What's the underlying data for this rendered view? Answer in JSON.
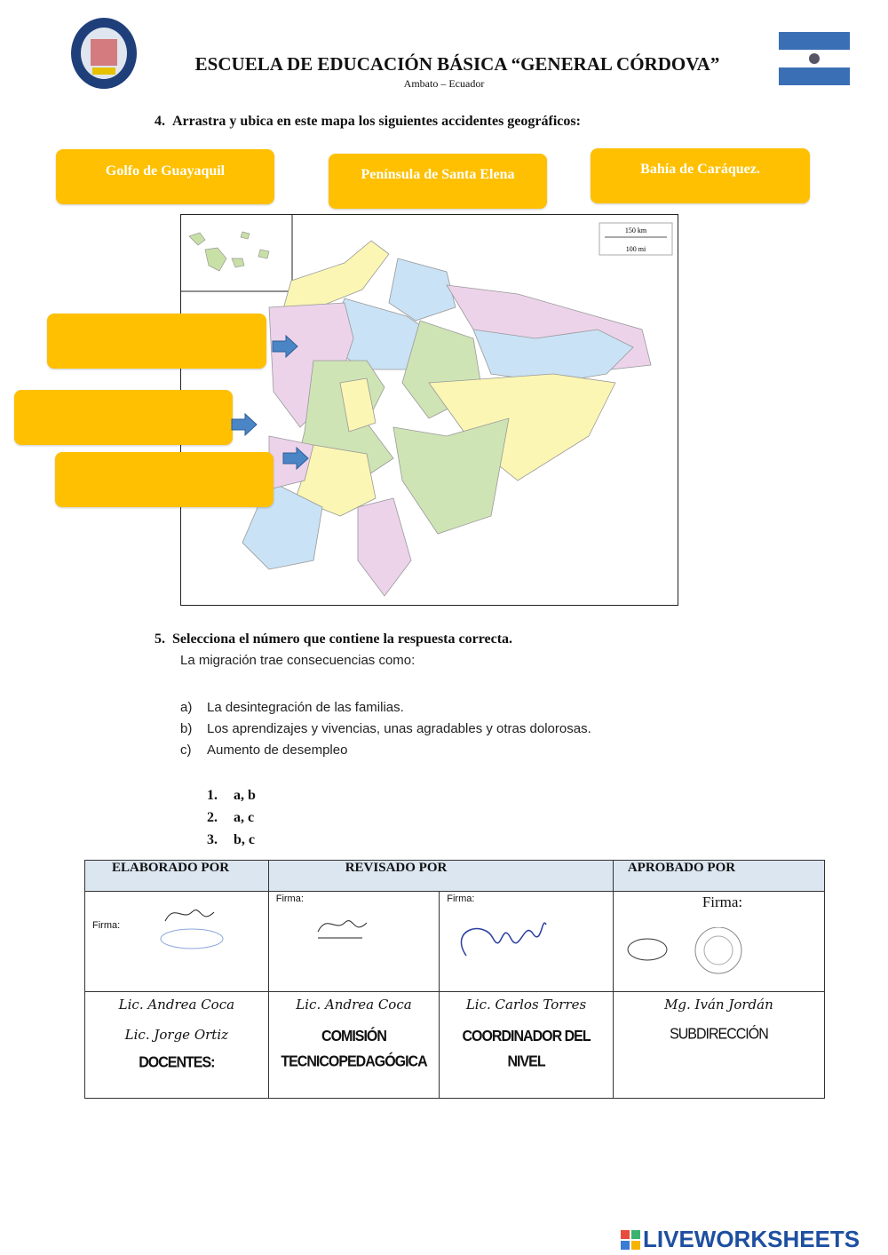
{
  "header": {
    "school": "ESCUELA DE EDUCACIÓN BÁSICA “GENERAL CÓRDOVA”",
    "location": "Ambato – Ecuador"
  },
  "q4": {
    "number": "4.",
    "text": "Arrastra y ubica en este mapa los siguientes accidentes geográficos:",
    "options": [
      "Golfo de Guayaquil",
      "Península de Santa Elena",
      "Bahía de Caráquez."
    ],
    "scale": {
      "km": "150 km",
      "mi": "100 mi"
    }
  },
  "q5": {
    "number": "5.",
    "text": "Selecciona el número que contiene  la respuesta correcta.",
    "intro": "La migración trae consecuencias como:",
    "items": [
      {
        "k": "a)",
        "t": "La desintegración de las familias."
      },
      {
        "k": "b)",
        "t": "Los aprendizajes y vivencias, unas agradables y otras dolorosas."
      },
      {
        "k": "c)",
        "t": "Aumento de desempleo"
      }
    ],
    "answers": [
      {
        "n": "1.",
        "t": "a, b"
      },
      {
        "n": "2.",
        "t": "a, c"
      },
      {
        "n": "3.",
        "t": "b, c"
      }
    ]
  },
  "table": {
    "headers": [
      "ELABORADO POR",
      "REVISADO POR",
      "APROBADO POR"
    ],
    "firma": "Firma:",
    "cols": [
      {
        "names": [
          "Lic. Andrea Coca",
          "Lic. Jorge Ortiz"
        ],
        "role": "DOCENTES:"
      },
      {
        "names": [
          "Lic. Andrea Coca"
        ],
        "role": "COMISIÓN TECNICOPEDAGÓGICA"
      },
      {
        "names": [
          "Lic. Carlos Torres"
        ],
        "role": "COORDINADOR DEL NIVEL"
      },
      {
        "names": [
          "Mg. Iván Jordán"
        ],
        "role": "SUBDIRECCIÓN"
      }
    ]
  },
  "footer": {
    "brand": "LIVEWORKSHEETS"
  },
  "colors": {
    "chip": "#fec000",
    "header_bg": "#dce6f1",
    "arrow": "#4a86c5"
  }
}
